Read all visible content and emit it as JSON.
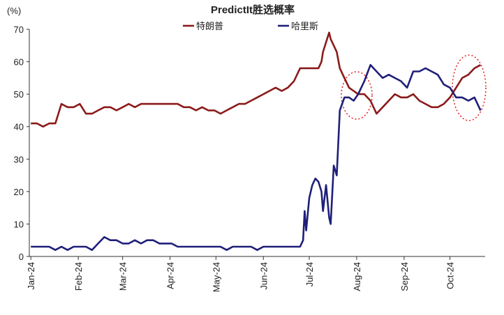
{
  "chart_data": {
    "type": "line",
    "title": "PredictIt胜选概率",
    "ylabel": "(%)",
    "x": [
      0,
      4,
      8,
      12,
      16,
      20,
      24,
      28,
      32,
      36,
      40,
      44,
      48,
      52,
      56,
      60,
      64,
      68,
      72,
      76,
      80,
      84,
      88,
      92,
      96,
      100,
      104,
      108,
      112,
      116,
      120,
      124,
      128,
      132,
      136,
      140,
      144,
      148,
      152,
      156,
      160,
      164,
      168,
      172,
      176,
      178,
      179,
      180,
      182,
      184,
      186,
      188,
      190,
      191,
      193,
      195,
      196,
      198,
      200,
      202,
      205,
      208,
      211,
      214,
      218,
      222,
      226,
      230,
      234,
      238,
      242,
      246,
      250,
      254,
      258,
      262,
      266,
      270,
      274,
      278,
      282,
      286,
      290,
      294
    ],
    "series": [
      {
        "name": "特朗普",
        "color": "#8b1a1a",
        "values": [
          41,
          41,
          40,
          41,
          41,
          47,
          46,
          46,
          47,
          44,
          44,
          45,
          46,
          46,
          45,
          46,
          47,
          46,
          47,
          47,
          47,
          47,
          47,
          47,
          47,
          46,
          46,
          45,
          46,
          45,
          45,
          44,
          45,
          46,
          47,
          47,
          48,
          49,
          50,
          51,
          52,
          51,
          52,
          54,
          58,
          58,
          58,
          58,
          58,
          58,
          58,
          58,
          60,
          63,
          66,
          69,
          67,
          65,
          63,
          58,
          55,
          52,
          51,
          50,
          50,
          48,
          44,
          46,
          48,
          50,
          49,
          49,
          50,
          48,
          47,
          46,
          46,
          47,
          49,
          52,
          55,
          56,
          58,
          59
        ]
      },
      {
        "name": "哈里斯",
        "color": "#1f1f7a",
        "values": [
          3,
          3,
          3,
          3,
          2,
          3,
          2,
          3,
          3,
          3,
          2,
          4,
          6,
          5,
          5,
          4,
          4,
          5,
          4,
          5,
          5,
          4,
          4,
          4,
          3,
          3,
          3,
          3,
          3,
          3,
          3,
          3,
          2,
          3,
          3,
          3,
          3,
          2,
          3,
          3,
          3,
          3,
          3,
          3,
          3,
          5,
          14,
          8,
          18,
          22,
          24,
          23,
          20,
          14,
          22,
          12,
          10,
          28,
          25,
          45,
          49,
          49,
          48,
          50,
          54,
          59,
          57,
          55,
          56,
          55,
          54,
          52,
          57,
          57,
          58,
          57,
          56,
          53,
          52,
          49,
          49,
          48,
          49,
          45
        ]
      }
    ],
    "xlim": [
      -1,
      297
    ],
    "xticks": [
      {
        "value": 0,
        "label": "Jan-24"
      },
      {
        "value": 31,
        "label": "Feb-24"
      },
      {
        "value": 60,
        "label": "Mar-24"
      },
      {
        "value": 91,
        "label": "Apr-24"
      },
      {
        "value": 121,
        "label": "May-24"
      },
      {
        "value": 152,
        "label": "Jun-24"
      },
      {
        "value": 182,
        "label": "Jul-24"
      },
      {
        "value": 213,
        "label": "Aug-24"
      },
      {
        "value": 244,
        "label": "Sep-24"
      },
      {
        "value": 274,
        "label": "Oct-24"
      }
    ],
    "ylim": [
      0,
      70
    ],
    "yticks": [
      0,
      10,
      20,
      30,
      40,
      50,
      60,
      70
    ],
    "grid": false,
    "legend": "top"
  }
}
